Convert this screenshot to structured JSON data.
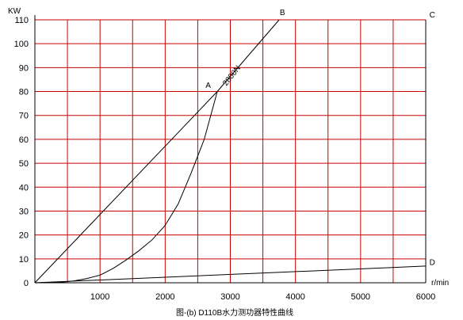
{
  "chart_data": {
    "type": "line",
    "title": "",
    "caption": "图-(b) D110B水力测功器特性曲线",
    "xlabel": "r/min",
    "ylabel": "KW",
    "xlim": [
      0,
      6000
    ],
    "ylim": [
      0,
      110
    ],
    "x_ticks": [
      1000,
      2000,
      3000,
      4000,
      5000,
      6000
    ],
    "y_ticks": [
      0,
      10,
      20,
      30,
      40,
      50,
      60,
      70,
      80,
      90,
      100,
      110
    ],
    "grid": true,
    "grid_color": "#cc0000",
    "line_color": "#000000",
    "series": [
      {
        "name": "",
        "points": [
          [
            0,
            0
          ],
          [
            2800,
            80
          ],
          [
            3750,
            110
          ]
        ]
      },
      {
        "name": "",
        "points": [
          [
            0,
            0
          ],
          [
            200,
            0.05
          ],
          [
            400,
            0.2
          ],
          [
            600,
            0.8
          ],
          [
            800,
            1.8
          ],
          [
            1000,
            3.2
          ],
          [
            1200,
            6
          ],
          [
            1400,
            9.5
          ],
          [
            1600,
            13.5
          ],
          [
            1800,
            18
          ],
          [
            2000,
            24
          ],
          [
            2200,
            33
          ],
          [
            2400,
            46
          ],
          [
            2600,
            60
          ],
          [
            2800,
            80
          ]
        ]
      },
      {
        "name": "",
        "points": [
          [
            0,
            0
          ],
          [
            6000,
            7
          ]
        ]
      }
    ],
    "annotations": [
      {
        "text": "A",
        "x": 2660,
        "y": 81.5
      },
      {
        "text": "B",
        "x": 3800,
        "y": 112
      },
      {
        "text": "C",
        "x": 6100,
        "y": 111
      },
      {
        "text": "D",
        "x": 6100,
        "y": 7.5
      },
      {
        "text": "2800N",
        "x": 3050,
        "y": 86
      }
    ]
  }
}
